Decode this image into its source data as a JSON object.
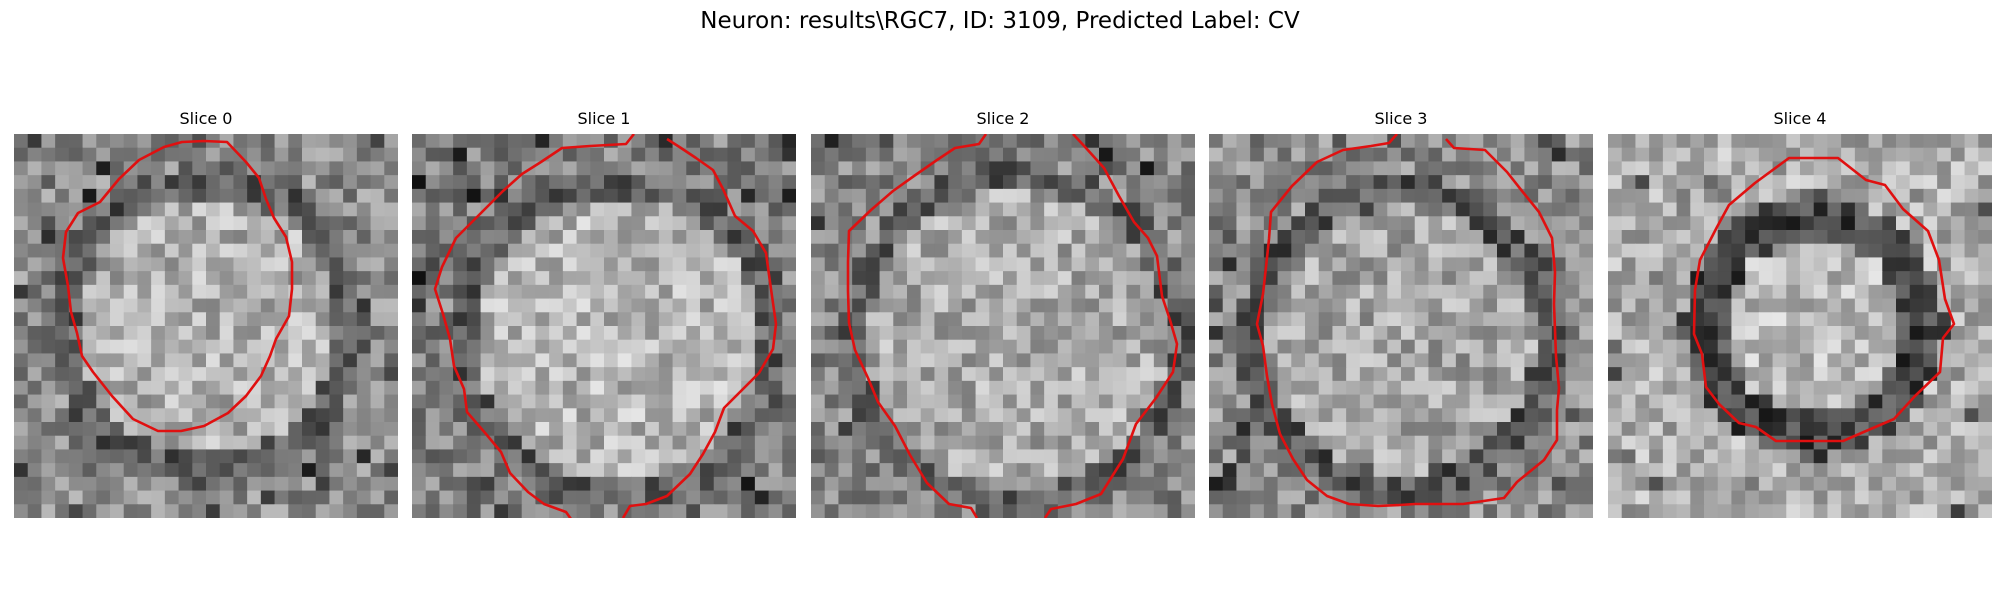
{
  "figure": {
    "title": "Neuron: results\\RGC7, ID: 3109, Predicted Label: CV"
  },
  "colors": {
    "outline": "#e01010",
    "background": "#ffffff",
    "text": "#000000"
  },
  "panels": [
    {
      "title": "Slice 0"
    },
    {
      "title": "Slice 1"
    },
    {
      "title": "Slice 2"
    },
    {
      "title": "Slice 3"
    },
    {
      "title": "Slice 4"
    }
  ]
}
